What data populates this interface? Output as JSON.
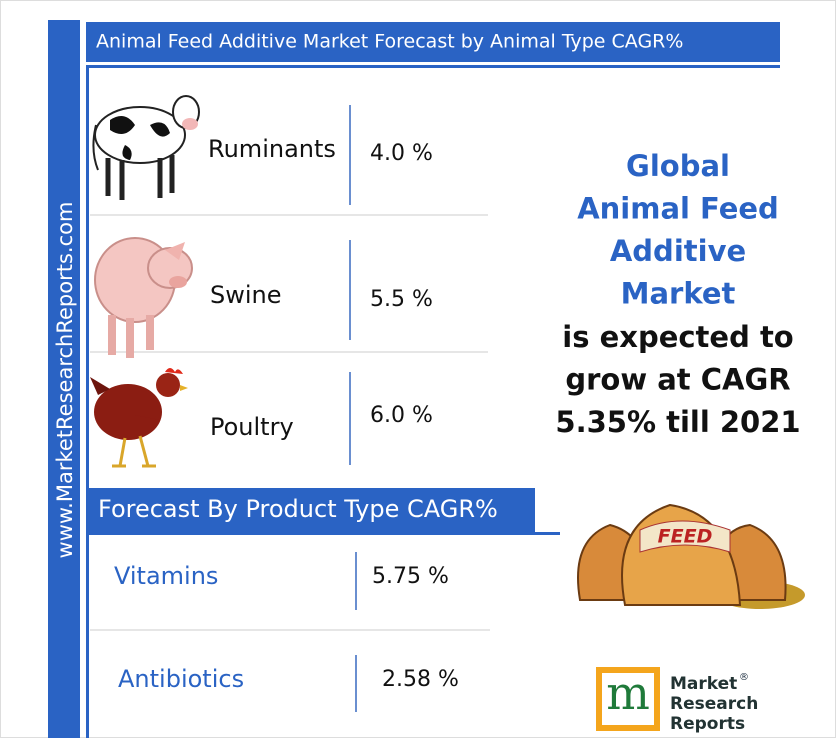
{
  "sidebar": "www.MarketResearchReports.com",
  "animal_section": {
    "title": "Animal Feed Additive Market Forecast by Animal Type CAGR%",
    "rows": [
      {
        "name": "Ruminants",
        "value": "4.0 %"
      },
      {
        "name": "Swine",
        "value": "5.5 %"
      },
      {
        "name": "Poultry",
        "value": "6.0 %"
      }
    ]
  },
  "product_section": {
    "title": "Forecast By Product Type CAGR%",
    "rows": [
      {
        "name": "Vitamins",
        "value": "5.75 %"
      },
      {
        "name": "Antibiotics",
        "value": "2.58 %"
      }
    ]
  },
  "headline": [
    "Global",
    "Animal Feed",
    "Additive",
    "Market"
  ],
  "subline": [
    "is expected to",
    "grow at CAGR",
    "5.35% till 2021"
  ],
  "feed_label": "FEED",
  "logo": {
    "mark": "m",
    "lines": [
      "Market",
      "Research",
      "Reports"
    ],
    "registered": "®"
  }
}
